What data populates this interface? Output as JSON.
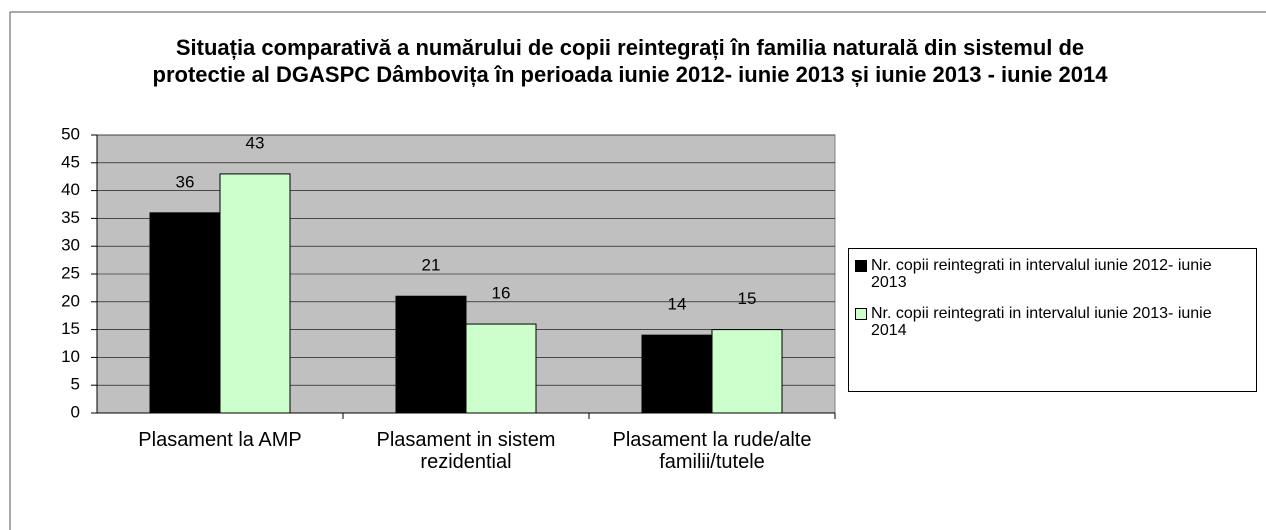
{
  "chart_data": {
    "type": "bar",
    "title": "Situația comparativă a numărului de copii reintegrați în familia naturală din sistemul de protectie al DGASPC Dâmbovița în perioada  iunie 2012- iunie 2013 și iunie 2013 - iunie 2014",
    "categories": [
      "Plasament la AMP",
      "Plasament in sistem rezidential",
      "Plasament la rude/alte familii/tutele"
    ],
    "series": [
      {
        "name": "Nr. copii  reintegrati in intervalul iunie 2012- iunie 2013",
        "color": "#000000",
        "values": [
          36,
          21,
          14
        ]
      },
      {
        "name": "Nr. copii  reintegrati in intervalul iunie 2013- iunie 2014",
        "color": "#ccffcc",
        "values": [
          43,
          16,
          15
        ]
      }
    ],
    "ylim": [
      0,
      50
    ],
    "yticks": [
      0,
      5,
      10,
      15,
      20,
      25,
      30,
      35,
      40,
      45,
      50
    ],
    "grid": true,
    "legend": "right"
  }
}
